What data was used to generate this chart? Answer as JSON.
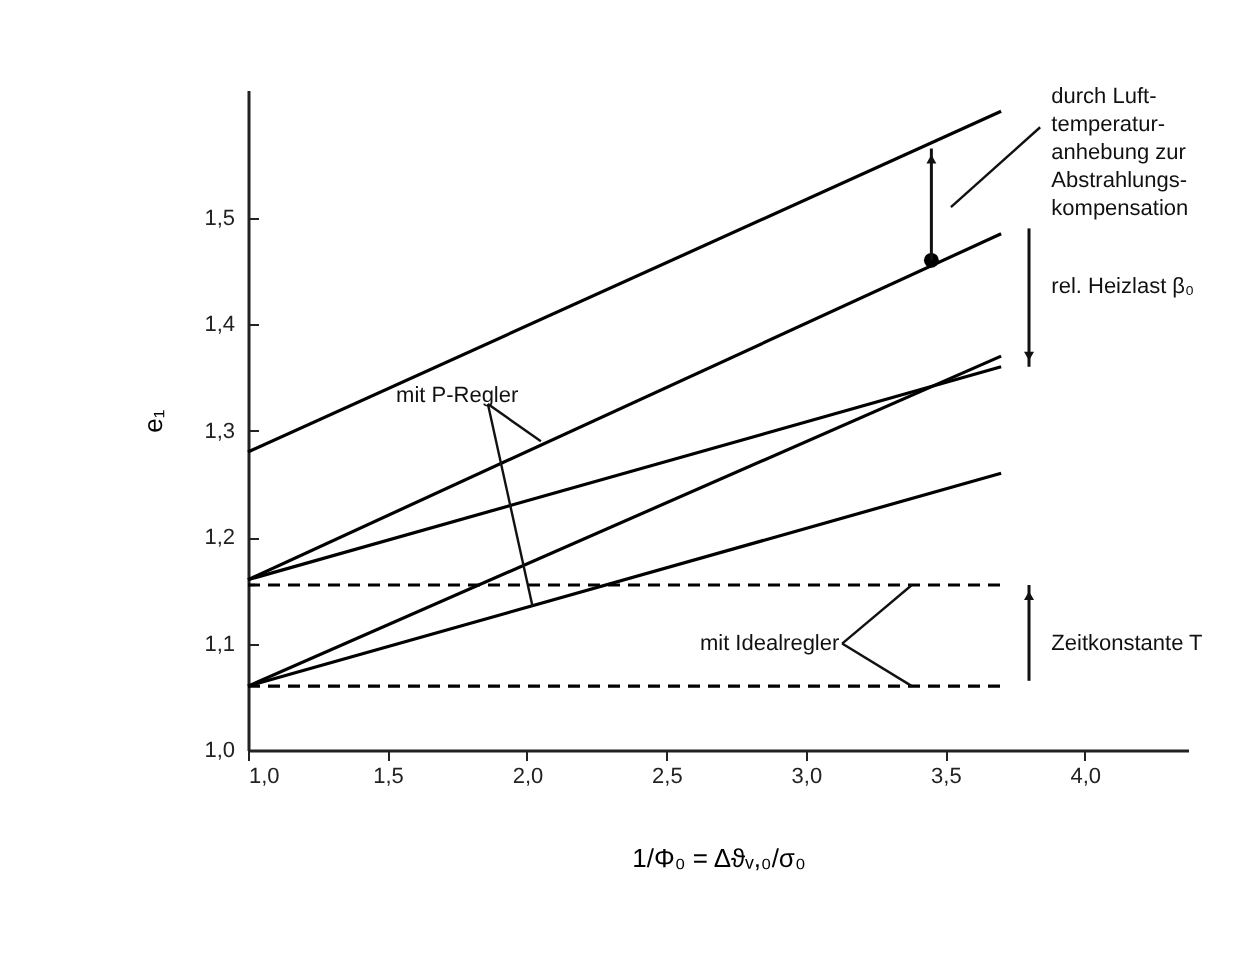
{
  "chart_data": {
    "type": "line",
    "xlabel": "1/Φ₀ = Δϑᵥ,₀/σ₀",
    "ylabel": "e₁",
    "xlim": [
      1.0,
      4.37
    ],
    "ylim": [
      1.0,
      1.62
    ],
    "xticks": [
      {
        "value": 1.0,
        "label": "1,0"
      },
      {
        "value": 1.5,
        "label": "1,5"
      },
      {
        "value": 2.0,
        "label": "2,0"
      },
      {
        "value": 2.5,
        "label": "2,5"
      },
      {
        "value": 3.0,
        "label": "3,0"
      },
      {
        "value": 3.5,
        "label": "3,5"
      },
      {
        "value": 4.0,
        "label": "4,0"
      }
    ],
    "yticks": [
      {
        "value": 1.0,
        "label": "1,0"
      },
      {
        "value": 1.1,
        "label": "1,1"
      },
      {
        "value": 1.2,
        "label": "1,2"
      },
      {
        "value": 1.3,
        "label": "1,3"
      },
      {
        "value": 1.4,
        "label": "1,4"
      },
      {
        "value": 1.5,
        "label": "1,5"
      }
    ],
    "grid": false,
    "marker": "none",
    "series": [
      {
        "color": "#000000",
        "x": [
          1.0,
          3.7
        ],
        "values": [
          1.28,
          1.6
        ]
      },
      {
        "color": "#000000",
        "x": [
          1.0,
          3.7
        ],
        "values": [
          1.16,
          1.485
        ]
      },
      {
        "color": "#000000",
        "x": [
          1.0,
          3.7
        ],
        "values": [
          1.16,
          1.36
        ]
      },
      {
        "color": "#000000",
        "x": [
          1.0,
          3.7
        ],
        "values": [
          1.06,
          1.37
        ]
      },
      {
        "color": "#000000",
        "x": [
          1.0,
          3.7
        ],
        "values": [
          1.06,
          1.26
        ]
      },
      {
        "color": "#000000",
        "x": [
          1.0,
          3.7
        ],
        "values": [
          1.155,
          1.155
        ],
        "line_style": "dashed"
      },
      {
        "color": "#000000",
        "x": [
          1.0,
          3.7
        ],
        "values": [
          1.06,
          1.06
        ],
        "line_style": "dashed"
      },
      {
        "type": "scatter",
        "marker": "circle",
        "color": "#000000",
        "x": [
          3.45
        ],
        "values": [
          1.46
        ]
      }
    ],
    "annotations": [
      "durch Luft-\ntemperatur-\nanhebung zur\nAbstrahlungs-\nkompensation",
      "rel. Heizlast β₀",
      {
        "text": "mit P-Regler",
        "x": 2.05,
        "y": 1.29
      },
      {
        "text": "mit Idealregler",
        "x": 3.38,
        "y": 1.155
      },
      "Zeitkonstante T"
    ]
  }
}
